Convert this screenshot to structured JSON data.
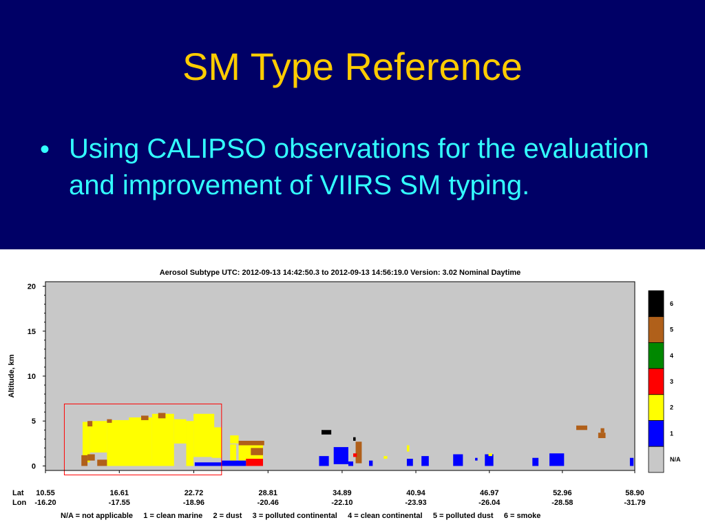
{
  "slide": {
    "title": "SM Type Reference",
    "bullet_symbol": "•",
    "bullet_text": "Using CALIPSO observations for the evaluation and improvement of VIIRS SM typing.",
    "background": "#000066",
    "title_color": "#ffcc00",
    "text_color": "#33ffff"
  },
  "chart_data": {
    "type": "heatmap",
    "title": "Aerosol Subtype    UTC:  2012-09-13    14:42:50.3  to  2012-09-13    14:56:19.0    Version: 3.02  Nominal Daytime",
    "ylabel": "Altitude, km",
    "ylim": [
      -0.5,
      20.5
    ],
    "yticks": [
      0,
      5,
      10,
      15,
      20
    ],
    "x_row_labels": [
      "Lat",
      "Lon"
    ],
    "xticks": [
      {
        "lat": "10.55",
        "lon": "-16.20"
      },
      {
        "lat": "16.61",
        "lon": "-17.55"
      },
      {
        "lat": "22.72",
        "lon": "-18.96"
      },
      {
        "lat": "28.81",
        "lon": "-20.46"
      },
      {
        "lat": "34.89",
        "lon": "-22.10"
      },
      {
        "lat": "40.94",
        "lon": "-23.93"
      },
      {
        "lat": "46.97",
        "lon": "-26.04"
      },
      {
        "lat": "52.96",
        "lon": "-28.58"
      },
      {
        "lat": "58.90",
        "lon": "-31.79"
      }
    ],
    "legend": {
      "placement": "right",
      "entries": [
        {
          "code": "6",
          "color": "#000000"
        },
        {
          "code": "5",
          "color": "#b0601a"
        },
        {
          "code": "4",
          "color": "#008800"
        },
        {
          "code": "3",
          "color": "#ff0000"
        },
        {
          "code": "2",
          "color": "#ffff00"
        },
        {
          "code": "1",
          "color": "#0000ff"
        },
        {
          "code": "N/A",
          "color": "#c8c8c8"
        }
      ]
    },
    "footnote": "N/A = not applicable     1 = clean marine     2 = dust     3 = polluted continental     4 = clean continental     5 = polluted dust     6 = smoke",
    "background_color": "#c8c8c8",
    "highlight_box": {
      "lat_start": 12.1,
      "lat_end": 25.0,
      "alt_bottom": -1.0,
      "alt_top": 6.9,
      "color": "#ff0000"
    },
    "layers": [
      {
        "type": 2,
        "lat_start": 13.6,
        "lat_end": 14.2,
        "alt_bottom": 0.4,
        "alt_top": 4.9
      },
      {
        "type": 2,
        "lat_start": 14.2,
        "lat_end": 15.6,
        "alt_bottom": 1.5,
        "alt_top": 5.0
      },
      {
        "type": 2,
        "lat_start": 15.6,
        "lat_end": 18.0,
        "alt_bottom": 0.0,
        "alt_top": 5.1
      },
      {
        "type": 2,
        "lat_start": 17.4,
        "lat_end": 19.3,
        "alt_bottom": 0.0,
        "alt_top": 5.4
      },
      {
        "type": 2,
        "lat_start": 19.3,
        "lat_end": 21.1,
        "alt_bottom": 0.0,
        "alt_top": 5.8
      },
      {
        "type": 2,
        "lat_start": 21.1,
        "lat_end": 22.1,
        "alt_bottom": 2.5,
        "alt_top": 5.2
      },
      {
        "type": 2,
        "lat_start": 22.1,
        "lat_end": 22.7,
        "alt_bottom": 0.0,
        "alt_top": 5.0
      },
      {
        "type": 2,
        "lat_start": 22.7,
        "lat_end": 24.4,
        "alt_bottom": 1.0,
        "alt_top": 5.8
      },
      {
        "type": 2,
        "lat_start": 24.2,
        "lat_end": 25.0,
        "alt_bottom": 0.9,
        "alt_top": 4.3
      },
      {
        "type": 2,
        "lat_start": 25.7,
        "lat_end": 26.4,
        "alt_bottom": 2.5,
        "alt_top": 3.4
      },
      {
        "type": 2,
        "lat_start": 25.7,
        "lat_end": 26.2,
        "alt_bottom": 0.1,
        "alt_top": 2.4
      },
      {
        "type": 2,
        "lat_start": 26.4,
        "lat_end": 28.4,
        "alt_bottom": 0.6,
        "alt_top": 2.3
      },
      {
        "type": 5,
        "lat_start": 13.5,
        "lat_end": 14.0,
        "alt_bottom": 0.0,
        "alt_top": 1.2
      },
      {
        "type": 5,
        "lat_start": 14.0,
        "lat_end": 14.6,
        "alt_bottom": 0.6,
        "alt_top": 1.3
      },
      {
        "type": 5,
        "lat_start": 14.8,
        "lat_end": 15.6,
        "alt_bottom": 0.0,
        "alt_top": 0.7
      },
      {
        "type": 5,
        "lat_start": 14.0,
        "lat_end": 14.4,
        "alt_bottom": 4.4,
        "alt_top": 5.0
      },
      {
        "type": 5,
        "lat_start": 15.6,
        "lat_end": 16.0,
        "alt_bottom": 4.8,
        "alt_top": 5.2
      },
      {
        "type": 5,
        "lat_start": 18.4,
        "lat_end": 19.0,
        "alt_bottom": 5.1,
        "alt_top": 5.6
      },
      {
        "type": 5,
        "lat_start": 19.8,
        "lat_end": 20.4,
        "alt_bottom": 5.3,
        "alt_top": 5.9
      },
      {
        "type": 5,
        "lat_start": 26.4,
        "lat_end": 28.5,
        "alt_bottom": 2.3,
        "alt_top": 2.8
      },
      {
        "type": 5,
        "lat_start": 27.4,
        "lat_end": 28.4,
        "alt_bottom": 1.2,
        "alt_top": 2.0
      },
      {
        "type": 5,
        "lat_start": 36.0,
        "lat_end": 36.5,
        "alt_bottom": 0.3,
        "alt_top": 2.7
      },
      {
        "type": 5,
        "lat_start": 54.1,
        "lat_end": 55.0,
        "alt_bottom": 4.0,
        "alt_top": 4.5
      },
      {
        "type": 5,
        "lat_start": 55.9,
        "lat_end": 56.5,
        "alt_bottom": 3.1,
        "alt_top": 3.7
      },
      {
        "type": 5,
        "lat_start": 56.1,
        "lat_end": 56.4,
        "alt_bottom": 3.7,
        "alt_top": 4.2
      },
      {
        "type": 3,
        "lat_start": 27.0,
        "lat_end": 28.4,
        "alt_bottom": 0.0,
        "alt_top": 0.8
      },
      {
        "type": 3,
        "lat_start": 35.8,
        "lat_end": 36.1,
        "alt_bottom": 1.0,
        "alt_top": 1.4
      },
      {
        "type": 1,
        "lat_start": 25.0,
        "lat_end": 27.0,
        "alt_bottom": 0.0,
        "alt_top": 0.6
      },
      {
        "type": 1,
        "lat_start": 22.8,
        "lat_end": 25.0,
        "alt_bottom": 0.0,
        "alt_top": 0.4
      },
      {
        "type": 1,
        "lat_start": 33.0,
        "lat_end": 33.8,
        "alt_bottom": 0.0,
        "alt_top": 1.1
      },
      {
        "type": 1,
        "lat_start": 34.2,
        "lat_end": 35.4,
        "alt_bottom": 0.2,
        "alt_top": 2.1
      },
      {
        "type": 1,
        "lat_start": 35.4,
        "lat_end": 35.8,
        "alt_bottom": 0.0,
        "alt_top": 0.5
      },
      {
        "type": 1,
        "lat_start": 37.1,
        "lat_end": 37.4,
        "alt_bottom": 0.0,
        "alt_top": 0.6
      },
      {
        "type": 1,
        "lat_start": 40.2,
        "lat_end": 40.7,
        "alt_bottom": 0.0,
        "alt_top": 0.8
      },
      {
        "type": 1,
        "lat_start": 41.4,
        "lat_end": 42.0,
        "alt_bottom": 0.0,
        "alt_top": 1.1
      },
      {
        "type": 1,
        "lat_start": 44.0,
        "lat_end": 44.8,
        "alt_bottom": 0.0,
        "alt_top": 1.3
      },
      {
        "type": 1,
        "lat_start": 45.8,
        "lat_end": 46.0,
        "alt_bottom": 0.6,
        "alt_top": 0.9
      },
      {
        "type": 1,
        "lat_start": 46.6,
        "lat_end": 47.3,
        "alt_bottom": 0.0,
        "alt_top": 1.3
      },
      {
        "type": 1,
        "lat_start": 50.5,
        "lat_end": 51.0,
        "alt_bottom": 0.0,
        "alt_top": 0.9
      },
      {
        "type": 1,
        "lat_start": 51.9,
        "lat_end": 53.1,
        "alt_bottom": 0.0,
        "alt_top": 1.4
      },
      {
        "type": 1,
        "lat_start": 58.5,
        "lat_end": 58.8,
        "alt_bottom": 0.0,
        "alt_top": 0.9
      },
      {
        "type": 2,
        "lat_start": 38.3,
        "lat_end": 38.6,
        "alt_bottom": 0.8,
        "alt_top": 1.1
      },
      {
        "type": 2,
        "lat_start": 40.2,
        "lat_end": 40.4,
        "alt_bottom": 1.6,
        "alt_top": 2.3
      },
      {
        "type": 2,
        "lat_start": 46.9,
        "lat_end": 47.2,
        "alt_bottom": 1.1,
        "alt_top": 1.4
      },
      {
        "type": 6,
        "lat_start": 33.2,
        "lat_end": 34.0,
        "alt_bottom": 3.5,
        "alt_top": 4.0
      },
      {
        "type": 6,
        "lat_start": 35.8,
        "lat_end": 36.0,
        "alt_bottom": 2.8,
        "alt_top": 3.2
      }
    ]
  }
}
